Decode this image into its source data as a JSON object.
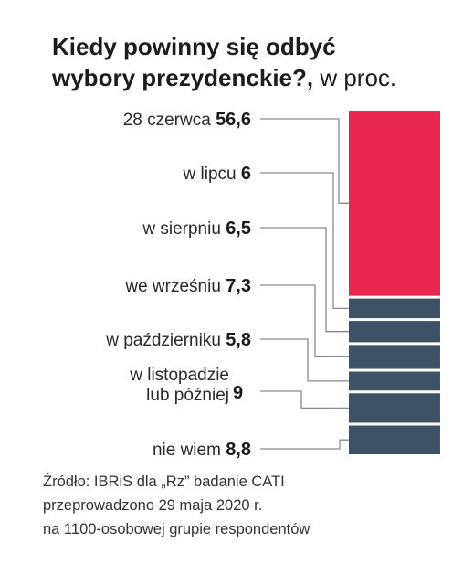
{
  "chart_data": {
    "type": "bar",
    "title_line1": "Kiedy powinny się odbyć",
    "title_line2": "wybory prezydenckie?,",
    "unit": "w proc.",
    "categories": [
      "28 czerwca",
      "w lipcu",
      "w sierpniu",
      "we wrześniu",
      "w październiku",
      "w listopadzie lub później",
      "nie wiem"
    ],
    "label_lines": [
      [
        "28 czerwca"
      ],
      [
        "w lipcu"
      ],
      [
        "w sierpniu"
      ],
      [
        "we wrześniu"
      ],
      [
        "w październiku"
      ],
      [
        "w listopadzie",
        "lub później"
      ],
      [
        "nie wiem"
      ]
    ],
    "values": [
      56.6,
      6,
      6.5,
      7.3,
      5.8,
      9,
      8.8
    ],
    "value_labels": [
      "56,6",
      "6",
      "6,5",
      "7,3",
      "5,8",
      "9",
      "8,8"
    ],
    "colors": [
      "#e8264f",
      "#3d5266",
      "#3d5266",
      "#3d5266",
      "#3d5266",
      "#3d5266",
      "#3d5266"
    ]
  },
  "source": {
    "line1": "Źródło: IBRiS dla „Rz” badanie CATI",
    "line2": "przeprowadzono 29 maja 2020 r.",
    "line3": "na 1100-osobowej grupie respondentów"
  }
}
